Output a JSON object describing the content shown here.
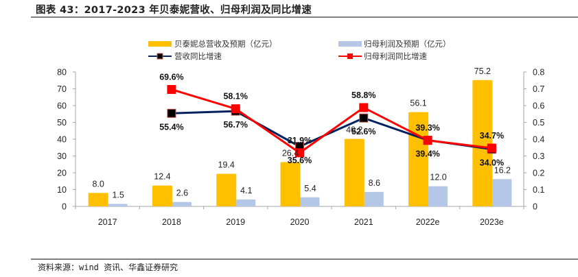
{
  "header": {
    "title": "图表 43：2017-2023 年贝泰妮营收、归母利润及同比增速"
  },
  "footer": {
    "source": "资料来源：wind 资讯、华鑫证券研究"
  },
  "colors": {
    "revenue_bar": "#FFC000",
    "profit_bar": "#B4C7E7",
    "revenue_growth_line": "#002060",
    "profit_growth_line": "#FF0000",
    "axis": "#A6A6A6"
  },
  "chart_data": {
    "type": "bar",
    "title": "",
    "categories": [
      "2017",
      "2018",
      "2019",
      "2020",
      "2021",
      "2022e",
      "2023e"
    ],
    "series": [
      {
        "name": "贝泰妮总营收及预期（亿元）",
        "kind": "bar",
        "axis": "left",
        "values": [
          8.0,
          12.4,
          19.4,
          26.4,
          40.2,
          56.1,
          75.2
        ],
        "labels": [
          "8.0",
          "12.4",
          "19.4",
          "26.4",
          "40.2",
          "56.1",
          "75.2"
        ]
      },
      {
        "name": "归母利润及预期（亿元）",
        "kind": "bar",
        "axis": "left",
        "values": [
          1.5,
          2.6,
          4.1,
          5.4,
          8.6,
          12.0,
          16.2
        ],
        "labels": [
          "1.5",
          "2.6",
          "4.1",
          "5.4",
          "8.6",
          "12.0",
          "16.2"
        ]
      },
      {
        "name": "营收同比增速",
        "kind": "line",
        "axis": "right",
        "values": [
          null,
          0.554,
          0.567,
          0.356,
          0.526,
          0.394,
          0.34
        ],
        "labels": [
          null,
          "55.4%",
          "56.7%",
          "35.6%",
          "52.6%",
          "39.4%",
          "34.0%"
        ]
      },
      {
        "name": "归母利润同比增速",
        "kind": "line",
        "axis": "right",
        "values": [
          null,
          0.696,
          0.581,
          0.319,
          0.588,
          0.393,
          0.347
        ],
        "labels": [
          null,
          "69.6%",
          "58.1%",
          "31.9%",
          "58.8%",
          "39.3%",
          "34.7%"
        ]
      }
    ],
    "y_left": {
      "range": [
        0,
        80
      ],
      "ticks": [
        "0",
        "10",
        "20",
        "30",
        "40",
        "50",
        "60",
        "70",
        "80"
      ]
    },
    "y_right": {
      "range": [
        0,
        0.8
      ],
      "ticks": [
        "0",
        "0.1",
        "0.2",
        "0.3",
        "0.4",
        "0.5",
        "0.6",
        "0.7",
        "0.8"
      ]
    },
    "xlabel": "",
    "ylabel": "",
    "grid": false,
    "legend": "top"
  }
}
